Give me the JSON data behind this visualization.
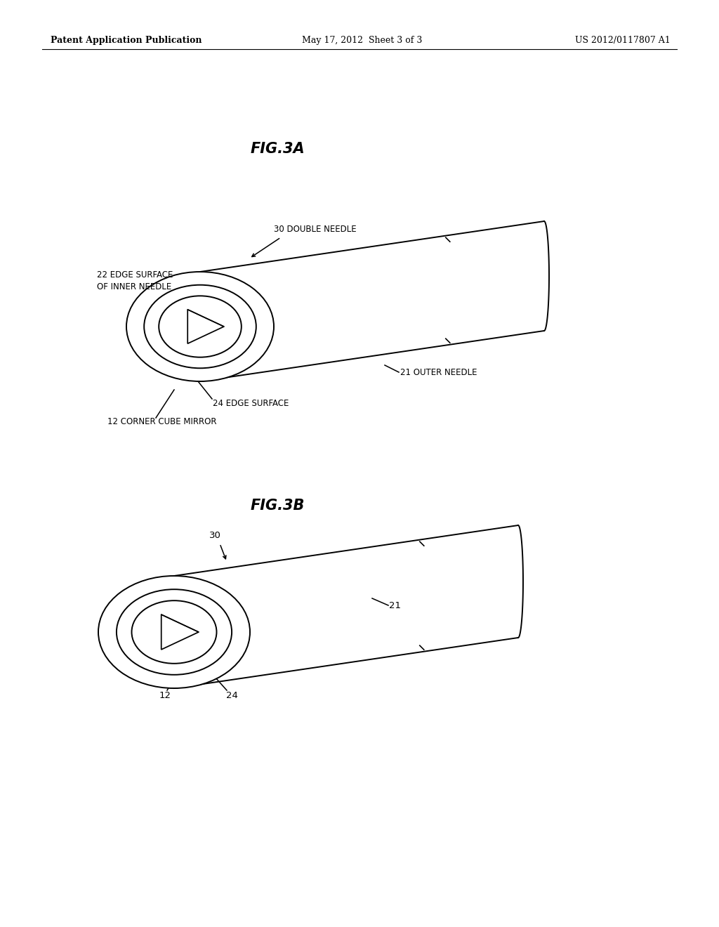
{
  "bg_color": "#ffffff",
  "header_left": "Patent Application Publication",
  "header_center": "May 17, 2012  Sheet 3 of 3",
  "header_right": "US 2012/0117807 A1",
  "fig3a_title": "FIG.3A",
  "fig3b_title": "FIG.3B",
  "label_30_full": "30 DOUBLE NEEDLE",
  "label_22_full": "22 EDGE SURFACE\nOF INNER NEEDLE",
  "label_21_full": "21 OUTER NEEDLE",
  "label_24_full": "24 EDGE SURFACE",
  "label_12_full": "12 CORNER CUBE MIRROR",
  "label_30_short": "30",
  "label_21_short": "21",
  "label_12_short": "12",
  "label_24_short": "24",
  "line_color": "#000000",
  "line_width": 1.4,
  "annotation_fontsize": 8.5,
  "title_fontsize": 15
}
